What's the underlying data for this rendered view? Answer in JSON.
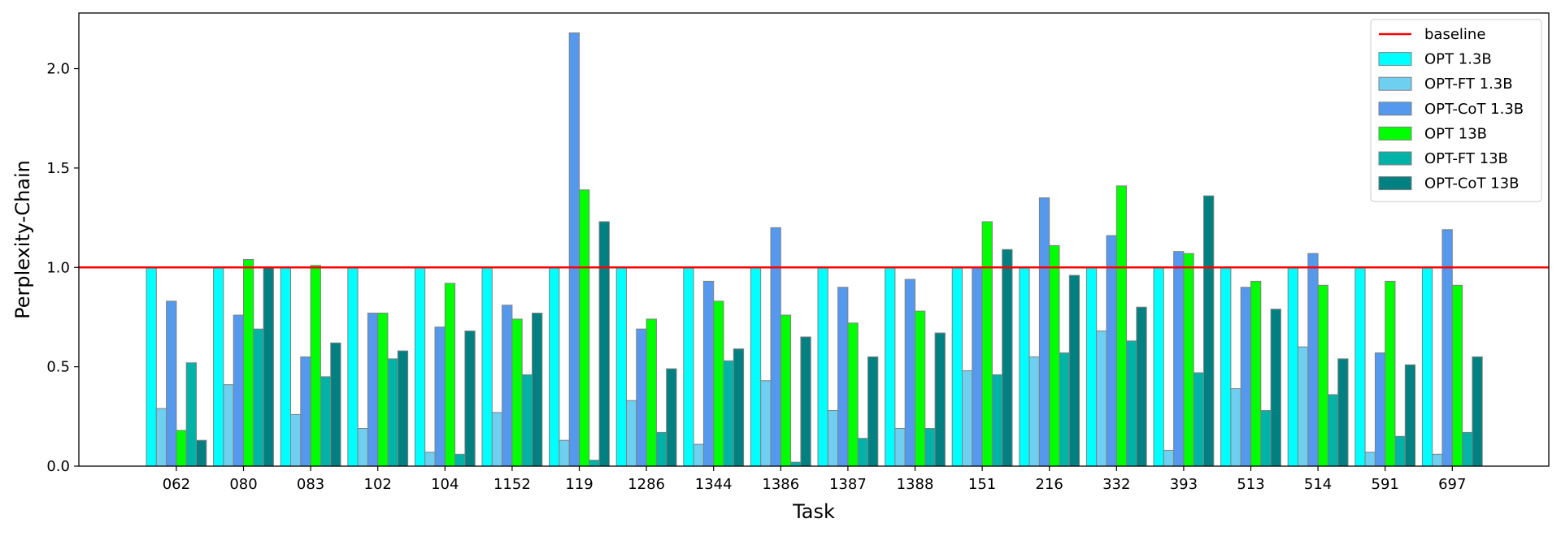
{
  "chart_data": {
    "type": "bar",
    "title": "",
    "xlabel": "Task",
    "ylabel": "Perplexity-Chain",
    "ylim": [
      0,
      2.28
    ],
    "yticks": [
      0.0,
      0.5,
      1.0,
      1.5,
      2.0
    ],
    "ytick_labels": [
      "0.0",
      "0.5",
      "1.0",
      "1.5",
      "2.0"
    ],
    "grid": false,
    "legend_position": "top-right",
    "categories": [
      "062",
      "080",
      "083",
      "102",
      "104",
      "1152",
      "119",
      "1286",
      "1344",
      "1386",
      "1387",
      "1388",
      "151",
      "216",
      "332",
      "393",
      "513",
      "514",
      "591",
      "697"
    ],
    "baseline": {
      "name": "baseline",
      "value": 1.0,
      "color": "#ff0000"
    },
    "series": [
      {
        "name": "OPT 1.3B",
        "color": "#00ffff",
        "values": [
          1.0,
          1.0,
          1.0,
          1.0,
          1.0,
          1.0,
          1.0,
          1.0,
          1.0,
          1.0,
          1.0,
          1.0,
          1.0,
          1.0,
          1.0,
          1.0,
          1.0,
          1.0,
          1.0,
          1.0
        ]
      },
      {
        "name": "OPT-FT 1.3B",
        "color": "#6ecff0",
        "values": [
          0.29,
          0.41,
          0.26,
          0.19,
          0.07,
          0.27,
          0.13,
          0.33,
          0.11,
          0.43,
          0.28,
          0.19,
          0.48,
          0.55,
          0.68,
          0.08,
          0.39,
          0.6,
          0.07,
          0.06
        ]
      },
      {
        "name": "OPT-CoT 1.3B",
        "color": "#5599ee",
        "values": [
          0.83,
          0.76,
          0.55,
          0.77,
          0.7,
          0.81,
          2.18,
          0.69,
          0.93,
          1.2,
          0.9,
          0.94,
          1.0,
          1.35,
          1.16,
          1.08,
          0.9,
          1.07,
          0.57,
          1.19
        ]
      },
      {
        "name": "OPT 13B",
        "color": "#00ff00",
        "values": [
          0.18,
          1.04,
          1.01,
          0.77,
          0.92,
          0.74,
          1.39,
          0.74,
          0.83,
          0.76,
          0.72,
          0.78,
          1.23,
          1.11,
          1.41,
          1.07,
          0.93,
          0.91,
          0.93,
          0.91
        ]
      },
      {
        "name": "OPT-FT 13B",
        "color": "#00b3a6",
        "values": [
          0.52,
          0.69,
          0.45,
          0.54,
          0.06,
          0.46,
          0.03,
          0.17,
          0.53,
          0.02,
          0.14,
          0.19,
          0.46,
          0.57,
          0.63,
          0.47,
          0.28,
          0.36,
          0.15,
          0.17
        ]
      },
      {
        "name": "OPT-CoT 13B",
        "color": "#008080",
        "values": [
          0.13,
          1.0,
          0.62,
          0.58,
          0.68,
          0.77,
          1.23,
          0.49,
          0.59,
          0.65,
          0.55,
          0.67,
          1.09,
          0.96,
          0.8,
          1.36,
          0.79,
          0.54,
          0.51,
          0.55
        ]
      }
    ]
  }
}
